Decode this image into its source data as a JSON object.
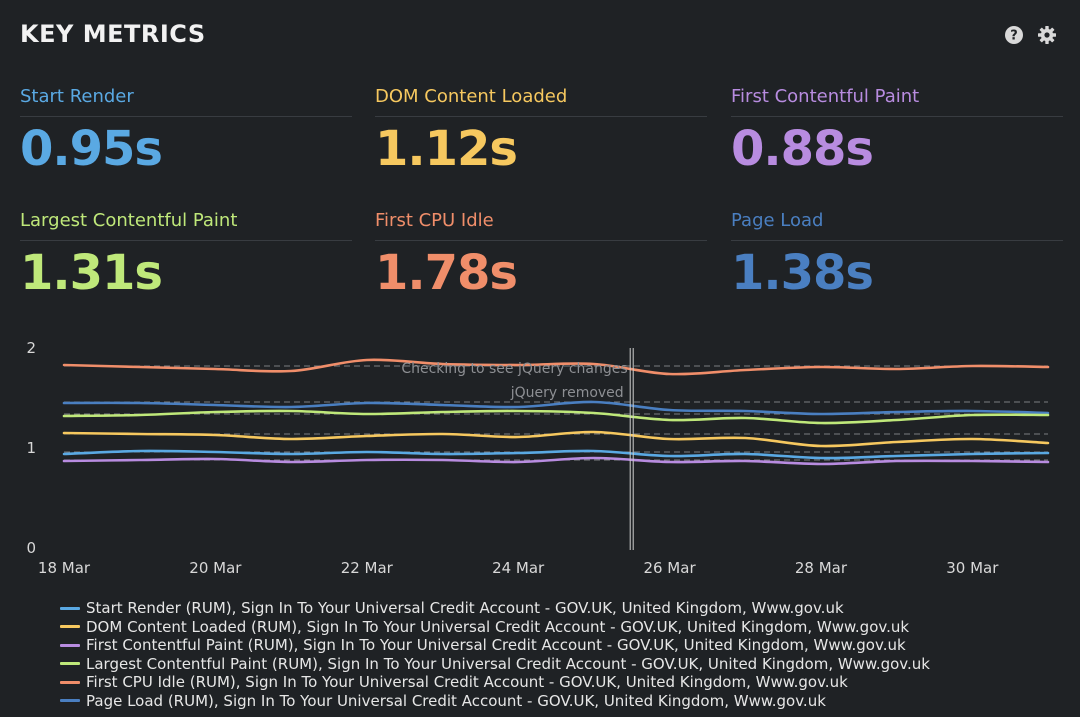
{
  "header": {
    "title": "KEY METRICS"
  },
  "icons": {
    "help": "help-icon",
    "settings": "gear-icon"
  },
  "metrics": [
    {
      "label": "Start Render",
      "value": "0.95s",
      "color": "#5aa9e3"
    },
    {
      "label": "DOM Content Loaded",
      "value": "1.12s",
      "color": "#f6c85f"
    },
    {
      "label": "First Contentful Paint",
      "value": "0.88s",
      "color": "#b88ce0"
    },
    {
      "label": "Largest Contentful Paint",
      "value": "1.31s",
      "color": "#bfe87a"
    },
    {
      "label": "First CPU Idle",
      "value": "1.78s",
      "color": "#f08e6a"
    },
    {
      "label": "Page Load",
      "value": "1.38s",
      "color": "#4a7fc1"
    }
  ],
  "chart_data": {
    "type": "line",
    "x": [
      "18 Mar",
      "19 Mar",
      "20 Mar",
      "21 Mar",
      "22 Mar",
      "23 Mar",
      "24 Mar",
      "25 Mar",
      "26 Mar",
      "27 Mar",
      "28 Mar",
      "29 Mar",
      "30 Mar",
      "31 Mar"
    ],
    "xticks": [
      "18 Mar",
      "20 Mar",
      "22 Mar",
      "24 Mar",
      "26 Mar",
      "28 Mar",
      "30 Mar"
    ],
    "yticks": [
      "0",
      "1",
      "2"
    ],
    "ylim": [
      0,
      2
    ],
    "annotations": [
      {
        "x": "25.5 Mar",
        "labels": [
          "Checking to see jQuery changes",
          "jQuery removed"
        ]
      }
    ],
    "series": [
      {
        "name": "First CPU Idle",
        "color": "#f08e6a",
        "values": [
          1.83,
          1.81,
          1.79,
          1.77,
          1.88,
          1.84,
          1.83,
          1.84,
          1.74,
          1.78,
          1.81,
          1.79,
          1.82,
          1.81
        ]
      },
      {
        "name": "Page Load",
        "color": "#4a7fc1",
        "values": [
          1.45,
          1.45,
          1.43,
          1.41,
          1.45,
          1.43,
          1.41,
          1.46,
          1.38,
          1.37,
          1.34,
          1.36,
          1.37,
          1.35
        ]
      },
      {
        "name": "Largest Contentful Paint",
        "color": "#bfe87a",
        "values": [
          1.32,
          1.33,
          1.36,
          1.37,
          1.34,
          1.36,
          1.37,
          1.35,
          1.28,
          1.3,
          1.25,
          1.28,
          1.33,
          1.33
        ]
      },
      {
        "name": "DOM Content Loaded",
        "color": "#f6c85f",
        "values": [
          1.15,
          1.14,
          1.13,
          1.09,
          1.12,
          1.14,
          1.11,
          1.16,
          1.09,
          1.1,
          1.02,
          1.06,
          1.09,
          1.05
        ]
      },
      {
        "name": "Start Render",
        "color": "#5aa9e3",
        "values": [
          0.94,
          0.97,
          0.96,
          0.94,
          0.96,
          0.94,
          0.95,
          0.97,
          0.92,
          0.94,
          0.9,
          0.92,
          0.94,
          0.95
        ]
      },
      {
        "name": "First Contentful Paint",
        "color": "#b88ce0",
        "values": [
          0.87,
          0.88,
          0.89,
          0.86,
          0.88,
          0.88,
          0.86,
          0.9,
          0.86,
          0.87,
          0.84,
          0.87,
          0.87,
          0.86
        ]
      }
    ],
    "baselines": [
      1.82,
      1.46,
      1.34,
      1.14,
      0.96,
      0.88
    ]
  },
  "legend": [
    {
      "label": "Start Render (RUM), Sign In To Your Universal Credit Account - GOV.UK, United Kingdom, Www.gov.uk",
      "color": "#5aa9e3"
    },
    {
      "label": "DOM Content Loaded (RUM), Sign In To Your Universal Credit Account - GOV.UK, United Kingdom, Www.gov.uk",
      "color": "#f6c85f"
    },
    {
      "label": "First Contentful Paint (RUM), Sign In To Your Universal Credit Account - GOV.UK, United Kingdom, Www.gov.uk",
      "color": "#b88ce0"
    },
    {
      "label": "Largest Contentful Paint (RUM), Sign In To Your Universal Credit Account - GOV.UK, United Kingdom, Www.gov.uk",
      "color": "#bfe87a"
    },
    {
      "label": "First CPU Idle (RUM), Sign In To Your Universal Credit Account - GOV.UK, United Kingdom, Www.gov.uk",
      "color": "#f08e6a"
    },
    {
      "label": "Page Load (RUM), Sign In To Your Universal Credit Account - GOV.UK, United Kingdom, Www.gov.uk",
      "color": "#4a7fc1"
    }
  ]
}
